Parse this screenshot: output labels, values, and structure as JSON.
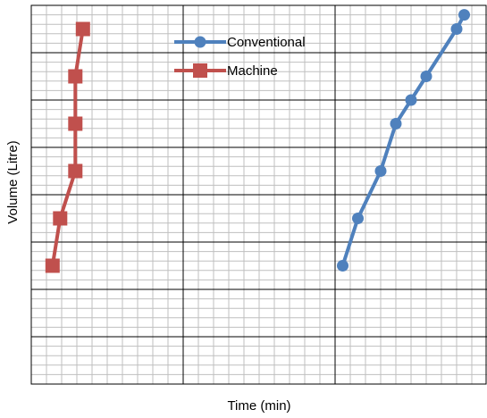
{
  "chart_data": {
    "type": "line",
    "title": "",
    "xlabel": "Time (min)",
    "ylabel": "Volume (Litre)",
    "xlim": [
      0,
      30
    ],
    "ylim": [
      0,
      8
    ],
    "x_major_step": 10,
    "x_minor_step": 1,
    "y_major_step": 1,
    "y_minor_step": 0.2,
    "grid": true,
    "legend_position": "top-center",
    "series": [
      {
        "name": "Conventional",
        "color": "#4F81BD",
        "marker": "circle",
        "x": [
          20.5,
          21.5,
          23.0,
          24.0,
          25.0,
          26.0,
          28.0,
          28.5
        ],
        "y": [
          2.5,
          3.5,
          4.5,
          5.5,
          6.0,
          6.5,
          7.5,
          7.8
        ]
      },
      {
        "name": "Machine",
        "color": "#C0504D",
        "marker": "square",
        "x": [
          1.4,
          1.9,
          2.9,
          2.9,
          2.9,
          3.4
        ],
        "y": [
          2.5,
          3.5,
          4.5,
          5.5,
          6.5,
          7.5
        ]
      }
    ]
  }
}
